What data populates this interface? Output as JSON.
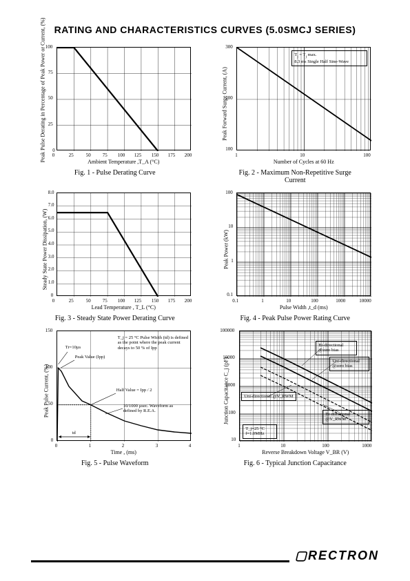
{
  "title_main": "RATING AND CHARACTERISTICS CURVES",
  "title_series": "(5.0SMCJ SERIES)",
  "brand": "RECTRON",
  "figures": {
    "f1": {
      "caption": "Fig. 1 - Pulse Derating Curve",
      "xlabel": "Ambient Temperature ,T_A  (°C)",
      "ylabel": "Peak Pulse Derating in Percentage of Peak Power or Current, (%)",
      "xlim": [
        0,
        200
      ],
      "ylim": [
        0,
        100
      ],
      "xticks": [
        0,
        25,
        50,
        75,
        100,
        125,
        150,
        175,
        200
      ],
      "yticks": [
        0,
        25,
        50,
        75,
        100
      ],
      "line_color": "#000000",
      "line_width": 2.2,
      "data": [
        [
          0,
          100
        ],
        [
          25,
          100
        ],
        [
          150,
          0
        ]
      ]
    },
    "f2": {
      "caption": "Fig. 2 - Maximum Non-Repetitive Surge Current",
      "xlabel": "Number of Cycles at 60 Hz",
      "ylabel": "Peak Forward Surge Current, (A)",
      "xscale": "log",
      "xlim": [
        1,
        100
      ],
      "yscale": "linear",
      "ylim": [
        100,
        300
      ],
      "yticks": [
        100,
        200,
        300
      ],
      "line_color": "#000000",
      "line_width": 1.8,
      "annot": "T_j = T_j max.\n8.3 ms Single Half Sine-Wave",
      "data": [
        [
          1,
          300
        ],
        [
          100,
          120
        ]
      ]
    },
    "f3": {
      "caption": "Fig. 3 - Steady State Power Derating Curve",
      "xlabel": "Lead Temperature , T_L  (°C)",
      "ylabel": "Steady State Power Dissipation, (W)",
      "xlim": [
        0,
        200
      ],
      "ylim": [
        0,
        8
      ],
      "xticks": [
        0,
        25,
        50,
        75,
        100,
        125,
        150,
        175,
        200
      ],
      "yticks": [
        0,
        1,
        2,
        3,
        4,
        5,
        6,
        7,
        8
      ],
      "line_color": "#000000",
      "line_width": 2.2,
      "data": [
        [
          0,
          6.5
        ],
        [
          75,
          6.5
        ],
        [
          150,
          0
        ]
      ]
    },
    "f4": {
      "caption": "Fig. 4 - Peak Pulse Power Rating Curve",
      "xlabel": "Pulse Width ,t_d  (ms)",
      "ylabel": "Peak Power  (kW)",
      "xscale": "log",
      "xlim": [
        0.1,
        10000
      ],
      "yscale": "log",
      "ylim": [
        0.1,
        100
      ],
      "line_color": "#000000",
      "line_width": 1.8,
      "data": [
        [
          0.1,
          90
        ],
        [
          10000,
          1.3
        ]
      ]
    },
    "f5": {
      "caption": "Fig. 5 - Pulse Waveform",
      "xlabel": "Time , (ms)",
      "ylabel": "Peak Pulse Current, (%)",
      "xlim": [
        0,
        4
      ],
      "ylim": [
        0,
        150
      ],
      "xticks": [
        0,
        1,
        2,
        3,
        4
      ],
      "yticks": [
        0,
        50,
        100,
        150
      ],
      "line_color": "#000000",
      "line_width": 1.2,
      "annot_tr": "Tr=10µs",
      "annot_peak": "Peak Value (Ipp)",
      "annot_cond": "T_j = 25 °C\nPulse Width (td) is defined as the point where the peak current decays to 50 % of Ipp",
      "annot_half": "Half Value =  Ipp / 2",
      "annot_wave": "10/1000 µsec. Waveform as defined by R.E.A.",
      "annot_td": "td",
      "curve": [
        [
          0,
          0
        ],
        [
          0.03,
          100
        ],
        [
          0.12,
          95
        ],
        [
          0.35,
          75
        ],
        [
          0.75,
          55
        ],
        [
          1.0,
          50
        ],
        [
          1.5,
          38
        ],
        [
          2.0,
          28
        ],
        [
          2.5,
          21
        ],
        [
          3.0,
          16
        ],
        [
          3.5,
          13
        ],
        [
          4.0,
          11
        ]
      ]
    },
    "f6": {
      "caption": "Fig. 6 - Typical Junction Capacitance",
      "xlabel": "Reverse Breakdown Voltage V_BR  (V)",
      "ylabel": "Junction Capacitance C_j  (pF)",
      "xscale": "log",
      "xlim": [
        1,
        1000
      ],
      "yscale": "log",
      "ylim": [
        10,
        100000
      ],
      "annot_cond": "T_j=25 °C\nf=1.0MHz",
      "labels": [
        "Bi-directional @zero bias",
        "Uni-directional @zero bias",
        "Uni-directional @V_RWM",
        "Bi-directional @V_RWM"
      ],
      "line_color": "#000000"
    }
  }
}
